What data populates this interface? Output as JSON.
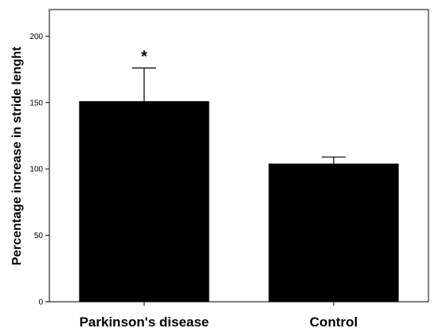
{
  "chart_data": {
    "type": "bar",
    "categories": [
      "Parkinson's disease",
      "Control"
    ],
    "values": [
      151,
      104
    ],
    "error_upper": [
      176,
      109
    ],
    "annotations": [
      "*",
      ""
    ],
    "ylabel": "Percentage increase in stride lenght",
    "xlabel": "",
    "title": "",
    "ylim": [
      0,
      220
    ],
    "yticks": [
      0,
      50,
      100,
      150,
      200
    ],
    "grid": false,
    "legend": "none",
    "bar_color": "#000000"
  }
}
